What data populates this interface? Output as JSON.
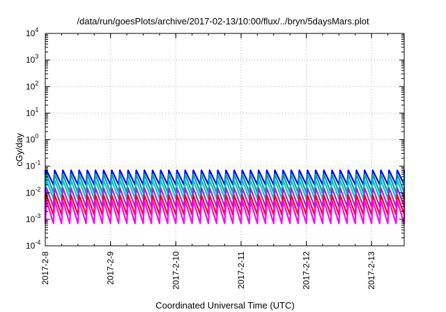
{
  "chart_data": {
    "type": "line",
    "title": "/data/run/goesPlots/archive/2017-02-13/10:00/flux/../bryn/5daysMars.plot",
    "xlabel": "Coordinated Universal Time (UTC)",
    "ylabel": "cGy/day",
    "y_scale": "log",
    "ylim": [
      0.0001,
      10000
    ],
    "xlim": [
      "2017-02-08 00:00",
      "2017-02-13 12:00"
    ],
    "grid": true,
    "legend": "none",
    "y_ticks": [
      {
        "base": "10",
        "exp": "-4"
      },
      {
        "base": "10",
        "exp": "-3"
      },
      {
        "base": "10",
        "exp": "-2"
      },
      {
        "base": "10",
        "exp": "-1"
      },
      {
        "base": "10",
        "exp": "0"
      },
      {
        "base": "10",
        "exp": "1"
      },
      {
        "base": "10",
        "exp": "2"
      },
      {
        "base": "10",
        "exp": "3"
      },
      {
        "base": "10",
        "exp": "4"
      }
    ],
    "x_ticks": [
      "2017-2-8",
      "2017-2-9",
      "2017-2-10",
      "2017-2-11",
      "2017-2-12",
      "2017-2-13"
    ],
    "oscillation_period_hours": 3,
    "series": [
      {
        "color": "#0000ff",
        "peak": 0.07,
        "trough": 0.02
      },
      {
        "color": "#00a0a0",
        "peak": 0.05,
        "trough": 0.01
      },
      {
        "color": "#00c8c8",
        "peak": 0.03,
        "trough": 0.006
      },
      {
        "color": "#a020f0",
        "peak": 0.015,
        "trough": 0.003
      },
      {
        "color": "#ff0000",
        "peak": 0.008,
        "trough": 0.0015
      },
      {
        "color": "#ff00ff",
        "peak": 0.005,
        "trough": 0.0007
      }
    ]
  }
}
